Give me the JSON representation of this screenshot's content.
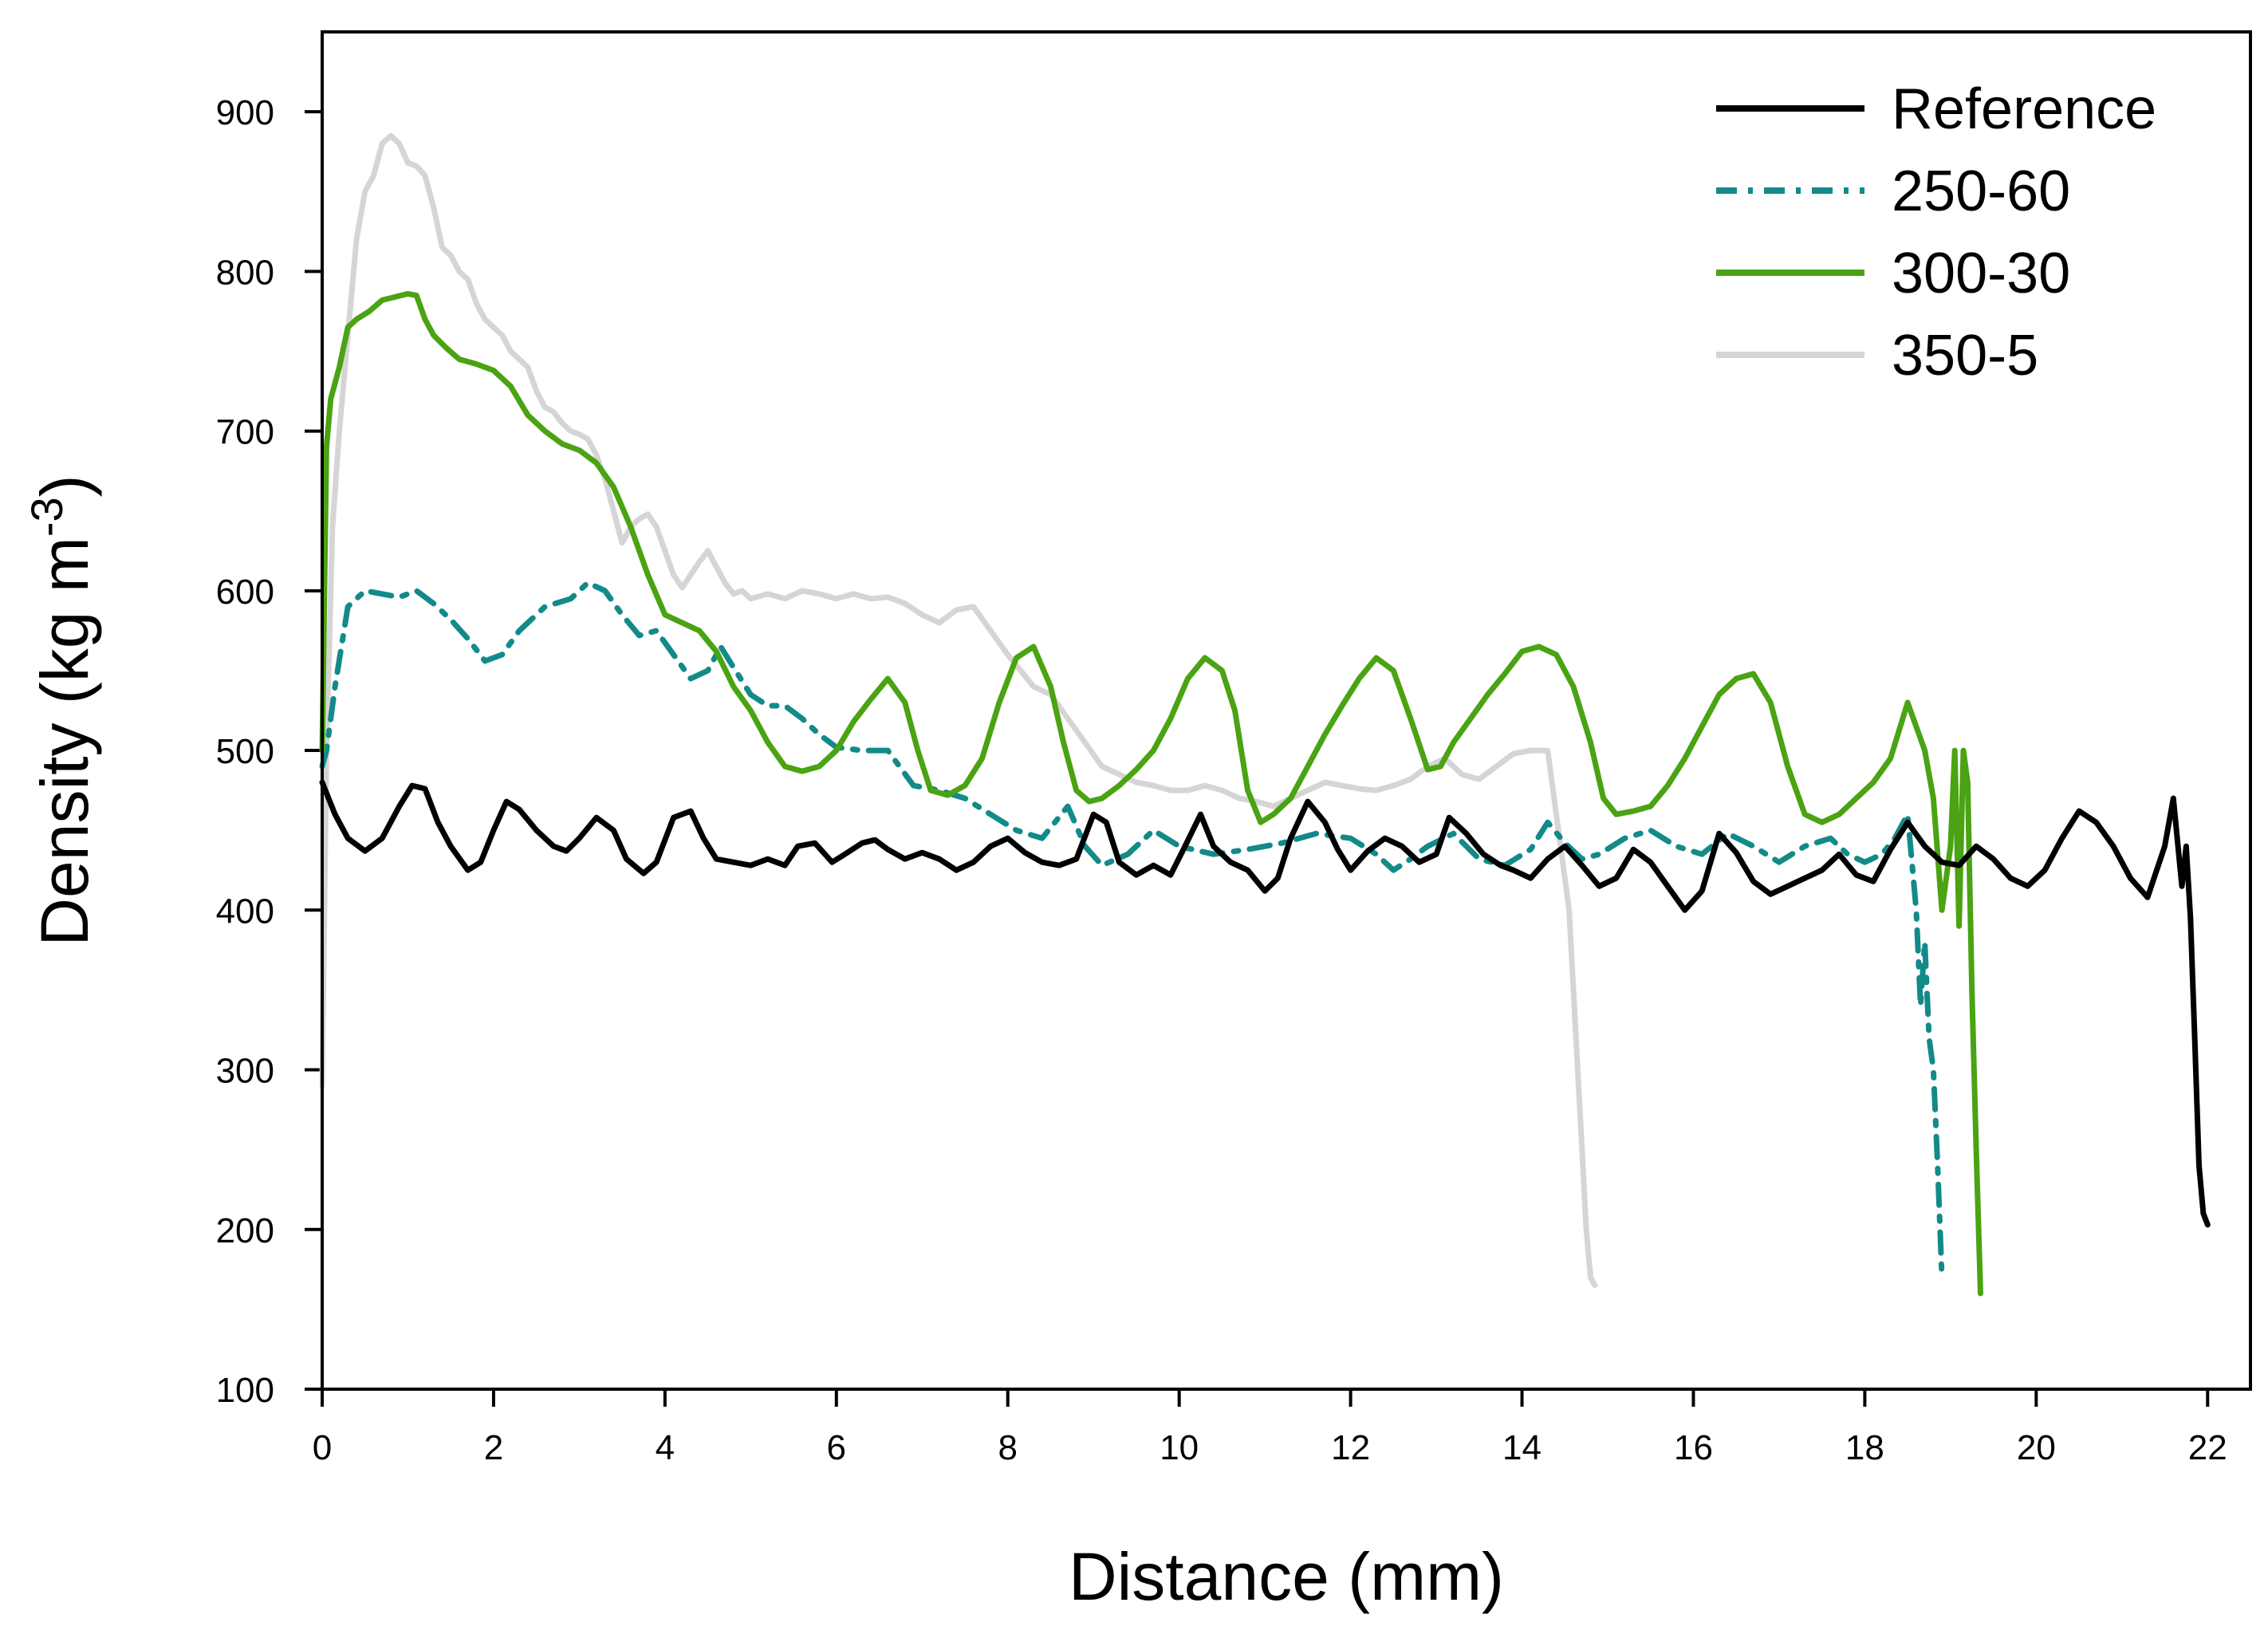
{
  "chart_data": {
    "type": "line",
    "xlabel": "Distance (mm)",
    "ylabel": {
      "main": "Density (kg m",
      "superscript": "-3",
      "close": ")"
    },
    "xlim": [
      0,
      22.5
    ],
    "ylim": [
      100,
      950
    ],
    "xticks": [
      0,
      2,
      4,
      6,
      8,
      10,
      12,
      14,
      16,
      18,
      20,
      22
    ],
    "yticks": [
      100,
      200,
      300,
      400,
      500,
      600,
      700,
      800,
      900
    ],
    "legend_position": "top-right",
    "series": [
      {
        "name": "Reference",
        "color": "#000000",
        "dash": "solid",
        "x": [
          0,
          0.15,
          0.3,
          0.5,
          0.7,
          0.9,
          1.05,
          1.2,
          1.35,
          1.5,
          1.7,
          1.85,
          2.0,
          2.15,
          2.3,
          2.5,
          2.7,
          2.85,
          3.0,
          3.2,
          3.4,
          3.55,
          3.75,
          3.9,
          4.1,
          4.3,
          4.45,
          4.6,
          4.8,
          5.0,
          5.2,
          5.4,
          5.55,
          5.75,
          5.95,
          6.1,
          6.3,
          6.45,
          6.6,
          6.8,
          7.0,
          7.2,
          7.4,
          7.6,
          7.8,
          8.0,
          8.2,
          8.4,
          8.6,
          8.8,
          9.0,
          9.15,
          9.3,
          9.5,
          9.7,
          9.9,
          10.05,
          10.25,
          10.4,
          10.6,
          10.8,
          11.0,
          11.15,
          11.3,
          11.5,
          11.7,
          11.85,
          12.0,
          12.2,
          12.4,
          12.6,
          12.8,
          13.0,
          13.15,
          13.35,
          13.55,
          13.75,
          13.9,
          14.1,
          14.3,
          14.5,
          14.7,
          14.9,
          15.1,
          15.3,
          15.5,
          15.7,
          15.9,
          16.1,
          16.3,
          16.5,
          16.7,
          16.9,
          17.1,
          17.3,
          17.5,
          17.7,
          17.9,
          18.1,
          18.3,
          18.5,
          18.7,
          18.9,
          19.1,
          19.3,
          19.5,
          19.7,
          19.9,
          20.1,
          20.3,
          20.5,
          20.7,
          20.9,
          21.1,
          21.3,
          21.5,
          21.6,
          21.7,
          21.75,
          21.8,
          21.85,
          21.9,
          21.95,
          22.0
        ],
        "y": [
          480,
          460,
          445,
          437,
          445,
          465,
          478,
          476,
          455,
          440,
          425,
          430,
          450,
          468,
          463,
          450,
          440,
          437,
          445,
          458,
          450,
          432,
          423,
          430,
          458,
          462,
          445,
          432,
          430,
          428,
          432,
          428,
          440,
          442,
          430,
          435,
          442,
          444,
          438,
          432,
          436,
          432,
          425,
          430,
          440,
          445,
          436,
          430,
          428,
          432,
          460,
          455,
          430,
          422,
          428,
          422,
          438,
          460,
          440,
          430,
          425,
          412,
          420,
          445,
          468,
          455,
          438,
          425,
          437,
          445,
          440,
          430,
          435,
          458,
          448,
          435,
          428,
          425,
          420,
          432,
          440,
          428,
          415,
          420,
          438,
          430,
          415,
          400,
          412,
          448,
          436,
          418,
          410,
          415,
          420,
          425,
          435,
          422,
          418,
          438,
          455,
          440,
          430,
          428,
          440,
          432,
          420,
          415,
          425,
          445,
          462,
          455,
          440,
          420,
          408,
          440,
          470,
          415,
          440,
          395,
          320,
          240,
          210,
          203
        ]
      },
      {
        "name": "250-60",
        "color": "#138a8a",
        "dash": "dash-dot",
        "x": [
          0,
          0.05,
          0.15,
          0.3,
          0.5,
          0.7,
          0.9,
          1.1,
          1.3,
          1.5,
          1.7,
          1.9,
          2.1,
          2.3,
          2.6,
          2.9,
          3.1,
          3.3,
          3.5,
          3.7,
          3.9,
          4.1,
          4.3,
          4.5,
          4.65,
          4.8,
          5.0,
          5.2,
          5.4,
          5.6,
          5.8,
          6.0,
          6.3,
          6.6,
          6.9,
          7.2,
          7.5,
          7.8,
          8.1,
          8.4,
          8.7,
          8.9,
          9.1,
          9.4,
          9.7,
          10.0,
          10.4,
          10.8,
          11.2,
          11.6,
          12.0,
          12.3,
          12.5,
          12.7,
          12.9,
          13.2,
          13.5,
          13.8,
          14.1,
          14.3,
          14.5,
          14.7,
          14.9,
          15.2,
          15.5,
          15.8,
          16.1,
          16.4,
          16.7,
          17.0,
          17.3,
          17.6,
          17.8,
          18.0,
          18.2,
          18.35,
          18.45,
          18.5,
          18.55,
          18.6,
          18.65,
          18.7,
          18.75,
          18.8,
          18.85,
          18.9
        ],
        "y": [
          490,
          500,
          540,
          590,
          600,
          598,
          596,
          600,
          592,
          582,
          570,
          556,
          560,
          575,
          590,
          595,
          605,
          600,
          585,
          572,
          575,
          560,
          545,
          550,
          565,
          552,
          535,
          528,
          528,
          520,
          510,
          502,
          500,
          500,
          478,
          475,
          470,
          460,
          450,
          445,
          465,
          440,
          428,
          435,
          450,
          440,
          435,
          438,
          442,
          448,
          445,
          435,
          425,
          432,
          440,
          448,
          432,
          428,
          438,
          455,
          442,
          432,
          435,
          445,
          450,
          440,
          435,
          448,
          440,
          430,
          440,
          445,
          435,
          430,
          435,
          445,
          455,
          460,
          430,
          400,
          340,
          380,
          320,
          300,
          240,
          170
        ]
      },
      {
        "name": "300-30",
        "color": "#4aa312",
        "dash": "solid",
        "x": [
          0,
          0.05,
          0.1,
          0.2,
          0.3,
          0.4,
          0.55,
          0.7,
          0.85,
          1.0,
          1.1,
          1.2,
          1.3,
          1.45,
          1.6,
          1.8,
          2.0,
          2.2,
          2.4,
          2.6,
          2.8,
          3.0,
          3.2,
          3.4,
          3.6,
          3.8,
          4.0,
          4.2,
          4.4,
          4.6,
          4.8,
          5.0,
          5.2,
          5.4,
          5.6,
          5.8,
          6.0,
          6.2,
          6.4,
          6.6,
          6.8,
          6.95,
          7.1,
          7.3,
          7.5,
          7.7,
          7.9,
          8.1,
          8.3,
          8.5,
          8.65,
          8.8,
          8.95,
          9.1,
          9.3,
          9.5,
          9.7,
          9.9,
          10.1,
          10.3,
          10.5,
          10.65,
          10.8,
          10.95,
          11.1,
          11.3,
          11.5,
          11.7,
          11.9,
          12.1,
          12.3,
          12.5,
          12.7,
          12.9,
          13.05,
          13.2,
          13.4,
          13.6,
          13.8,
          14.0,
          14.2,
          14.4,
          14.6,
          14.8,
          14.95,
          15.1,
          15.3,
          15.5,
          15.7,
          15.9,
          16.1,
          16.3,
          16.5,
          16.7,
          16.9,
          17.1,
          17.3,
          17.5,
          17.7,
          17.9,
          18.1,
          18.3,
          18.5,
          18.7,
          18.8,
          18.9,
          19.0,
          19.05,
          19.1,
          19.15,
          19.2,
          19.25,
          19.3,
          19.35
        ],
        "y": [
          500,
          690,
          720,
          740,
          765,
          770,
          775,
          782,
          784,
          786,
          785,
          770,
          760,
          752,
          745,
          742,
          738,
          728,
          710,
          700,
          692,
          688,
          680,
          665,
          640,
          610,
          585,
          580,
          575,
          562,
          540,
          525,
          505,
          490,
          487,
          490,
          500,
          518,
          532,
          545,
          530,
          500,
          475,
          472,
          478,
          495,
          530,
          558,
          565,
          540,
          505,
          475,
          468,
          470,
          478,
          488,
          500,
          520,
          545,
          558,
          550,
          525,
          475,
          455,
          460,
          470,
          490,
          510,
          528,
          545,
          558,
          550,
          520,
          488,
          490,
          505,
          520,
          535,
          548,
          562,
          565,
          560,
          540,
          505,
          470,
          460,
          462,
          465,
          478,
          495,
          515,
          535,
          545,
          548,
          530,
          490,
          460,
          455,
          460,
          470,
          480,
          495,
          530,
          500,
          470,
          400,
          440,
          500,
          390,
          500,
          480,
          350,
          250,
          160
        ]
      },
      {
        "name": "350-5",
        "color": "#d5d5d5",
        "dash": "solid",
        "x": [
          0,
          0.05,
          0.12,
          0.2,
          0.3,
          0.4,
          0.5,
          0.6,
          0.7,
          0.8,
          0.9,
          1.0,
          1.1,
          1.2,
          1.3,
          1.4,
          1.5,
          1.6,
          1.7,
          1.8,
          1.9,
          2.0,
          2.1,
          2.2,
          2.3,
          2.4,
          2.5,
          2.6,
          2.7,
          2.8,
          2.9,
          3.0,
          3.1,
          3.2,
          3.3,
          3.4,
          3.5,
          3.6,
          3.7,
          3.8,
          3.9,
          4.0,
          4.1,
          4.2,
          4.3,
          4.4,
          4.5,
          4.6,
          4.7,
          4.8,
          4.9,
          5.0,
          5.2,
          5.4,
          5.6,
          5.8,
          6.0,
          6.2,
          6.4,
          6.6,
          6.8,
          7.0,
          7.2,
          7.4,
          7.6,
          7.8,
          8.0,
          8.15,
          8.3,
          8.5,
          8.7,
          8.9,
          9.1,
          9.3,
          9.5,
          9.7,
          9.9,
          10.1,
          10.3,
          10.5,
          10.7,
          10.9,
          11.1,
          11.3,
          11.5,
          11.7,
          11.9,
          12.1,
          12.3,
          12.5,
          12.7,
          12.9,
          13.1,
          13.3,
          13.5,
          13.7,
          13.9,
          14.1,
          14.3,
          14.4,
          14.5,
          14.55,
          14.6,
          14.65,
          14.7,
          14.75,
          14.8,
          14.85
        ],
        "y": [
          290,
          500,
          640,
          700,
          760,
          820,
          850,
          860,
          880,
          885,
          880,
          868,
          866,
          860,
          840,
          815,
          810,
          800,
          795,
          780,
          770,
          765,
          760,
          750,
          745,
          740,
          725,
          715,
          712,
          705,
          700,
          698,
          695,
          685,
          670,
          650,
          630,
          640,
          645,
          648,
          640,
          625,
          610,
          602,
          610,
          618,
          625,
          615,
          605,
          598,
          600,
          595,
          598,
          595,
          600,
          598,
          595,
          598,
          595,
          596,
          592,
          585,
          580,
          588,
          590,
          575,
          560,
          550,
          540,
          535,
          520,
          505,
          490,
          485,
          480,
          478,
          475,
          475,
          478,
          475,
          470,
          468,
          465,
          470,
          475,
          480,
          478,
          476,
          475,
          478,
          482,
          490,
          495,
          485,
          482,
          490,
          498,
          500,
          500,
          460,
          420,
          400,
          350,
          300,
          250,
          200,
          170,
          165
        ]
      }
    ]
  }
}
